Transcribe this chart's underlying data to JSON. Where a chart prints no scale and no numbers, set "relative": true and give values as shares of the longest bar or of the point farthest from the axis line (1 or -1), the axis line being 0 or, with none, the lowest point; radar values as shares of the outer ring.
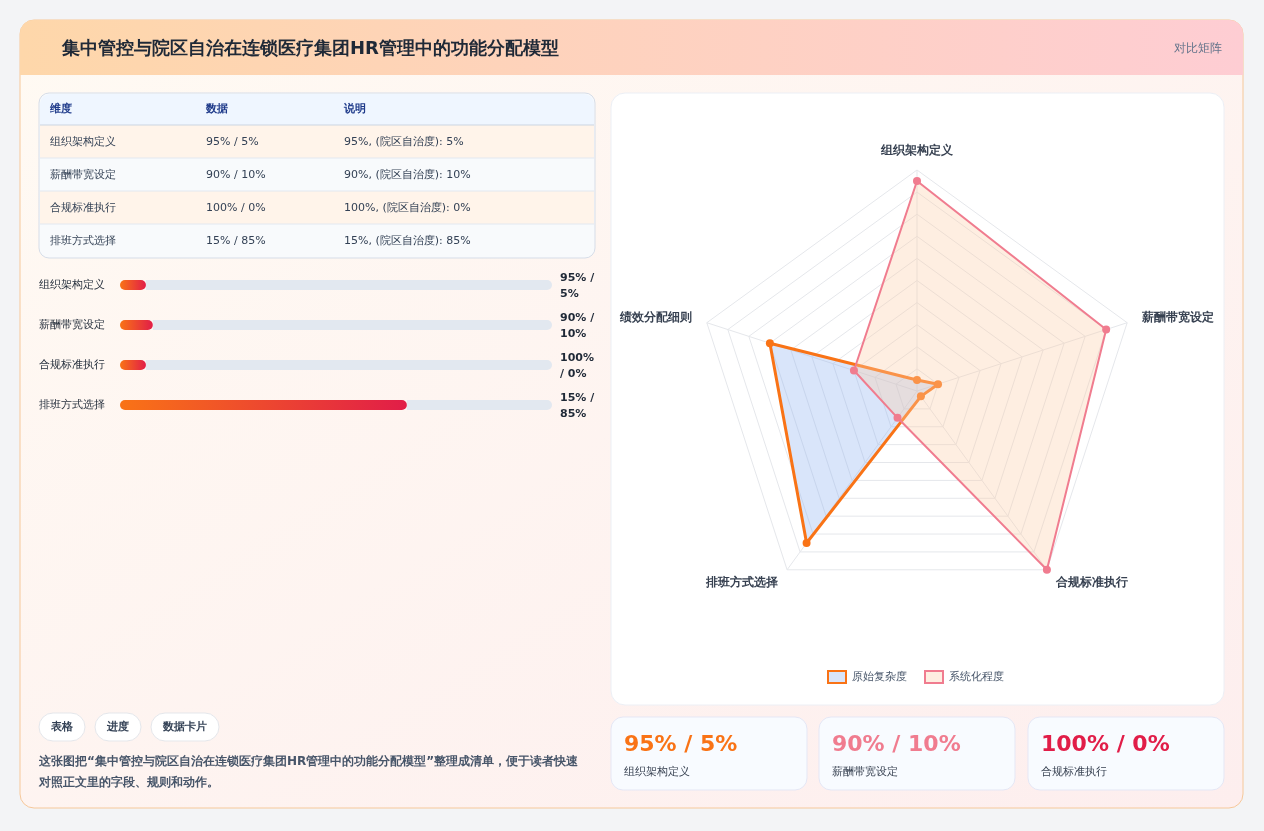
{
  "chart_data": [
    {
      "type": "other",
      "title": "集中管控与院区自治在连锁医疗集团HR管理中的功能分配模型",
      "subtitle": "对比矩阵",
      "annotations": [
        "表格",
        "进度",
        "数据卡片",
        "这张图把“集中管控与院区自治在连锁医疗集团HR管理中的功能分配模型”整理成清单，便于读者快速对照正文里的字段、规则和动作。"
      ]
    },
    {
      "type": "other",
      "annotations": [
        "维度",
        "数据",
        "说明",
        "组织架构定义",
        "95% / 5%",
        "95%, (院区自治度): 5%",
        "薪酬带宽设定",
        "90% / 10%",
        "90%, (院区自治度): 10%",
        "合规标准执行",
        "100% / 0%",
        "100%, (院区自治度): 0%",
        "排班方式选择",
        "15% / 85%",
        "15%, (院区自治度): 85%"
      ]
    },
    {
      "type": "bar",
      "orientation": "horizontal",
      "relative": true,
      "stacked": true,
      "categories": [
        "组织架构定义",
        "薪酬带宽设定",
        "合规标准执行",
        "排班方式选择"
      ],
      "series": [
        {
          "color": "#e11d48",
          "values": [
            0.06,
            0.076,
            0.06,
            0.664
          ]
        },
        {
          "color": "#e2e8f0",
          "values": [
            0.94,
            0.924,
            0.94,
            0.336
          ]
        }
      ],
      "annotations": [
        "95% / 5%",
        "90% / 10%",
        "100% / 0%",
        "15% / 85%"
      ]
    },
    {
      "type": "radar",
      "relative": true,
      "categories": [
        "组织架构定义",
        "薪酬带宽设定",
        "合规标准执行",
        "排班方式选择",
        "绩效分配细则"
      ],
      "legend": "bottom",
      "series": [
        {
          "name": "原始复杂度",
          "color": "#f97316",
          "values": [
            0.05,
            0.1,
            0.03,
            0.85,
            0.7
          ]
        },
        {
          "name": "系统化程度",
          "color": "#f07c8f",
          "values": [
            0.95,
            0.9,
            1,
            0.15,
            0.3
          ]
        }
      ]
    },
    {
      "type": "other",
      "annotations": [
        "95% / 5%",
        "组织架构定义",
        "90% / 10%",
        "薪酬带宽设定",
        "100% / 0%",
        "合规标准执行"
      ],
      "colors": [
        "#f97316",
        "#f07c8f",
        "#e11d48"
      ]
    }
  ]
}
